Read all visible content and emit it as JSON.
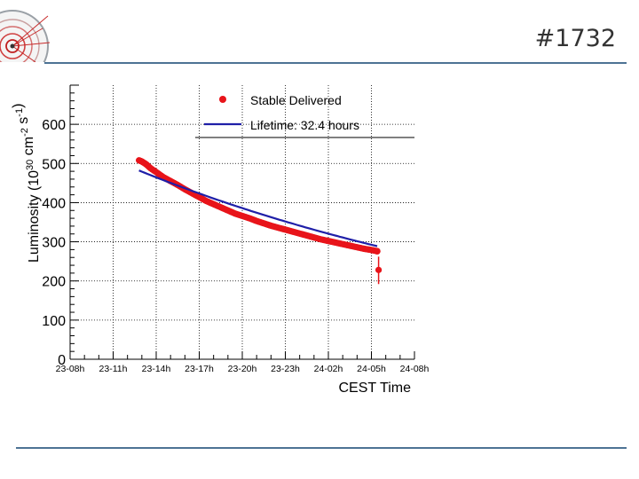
{
  "slide": {
    "title": "#1732",
    "accent_color": "#4d7394"
  },
  "logo": {
    "icon": "collision-event-display-icon"
  },
  "chart_data": {
    "type": "scatter",
    "title": "",
    "xlabel": "CEST Time",
    "ylabel": "Luminosity (10^30 cm^-2 s^-1)",
    "ylabel_parts": {
      "main": "Luminosity (10",
      "exp1": "30",
      "mid": " cm",
      "exp2": "-2",
      "mid2": " s",
      "exp3": "-1",
      "end": ")"
    },
    "x_unit": "hours since 23-08h",
    "xlim": [
      0,
      24
    ],
    "ylim": [
      0,
      700
    ],
    "x_ticks": [
      {
        "x": 0,
        "label": "23-08h"
      },
      {
        "x": 3,
        "label": "23-11h"
      },
      {
        "x": 6,
        "label": "23-14h"
      },
      {
        "x": 9,
        "label": "23-17h"
      },
      {
        "x": 12,
        "label": "23-20h"
      },
      {
        "x": 15,
        "label": "23-23h"
      },
      {
        "x": 18,
        "label": "24-02h"
      },
      {
        "x": 21,
        "label": "24-05h"
      },
      {
        "x": 24,
        "label": "24-08h"
      }
    ],
    "y_ticks": [
      0,
      100,
      200,
      300,
      400,
      500,
      600
    ],
    "grid": true,
    "legend_position": "top-right",
    "series": [
      {
        "name": "Stable Delivered",
        "kind": "markers",
        "color": "#e8141a",
        "points": [
          [
            4.8,
            508
          ],
          [
            5.0,
            505
          ],
          [
            5.3,
            498
          ],
          [
            5.6,
            488
          ],
          [
            6.0,
            478
          ],
          [
            6.5,
            465
          ],
          [
            7.0,
            455
          ],
          [
            7.5,
            445
          ],
          [
            8.0,
            434
          ],
          [
            8.5,
            424
          ],
          [
            9.0,
            414
          ],
          [
            9.5,
            404
          ],
          [
            10.0,
            396
          ],
          [
            10.5,
            388
          ],
          [
            11.0,
            380
          ],
          [
            11.5,
            372
          ],
          [
            12.0,
            366
          ],
          [
            12.5,
            360
          ],
          [
            13.0,
            353
          ],
          [
            13.5,
            347
          ],
          [
            14.0,
            341
          ],
          [
            14.5,
            336
          ],
          [
            15.0,
            331
          ],
          [
            15.5,
            326
          ],
          [
            16.0,
            321
          ],
          [
            16.5,
            316
          ],
          [
            17.0,
            311
          ],
          [
            17.5,
            306
          ],
          [
            18.0,
            302
          ],
          [
            18.5,
            298
          ],
          [
            19.0,
            294
          ],
          [
            19.5,
            290
          ],
          [
            20.0,
            286
          ],
          [
            20.5,
            282
          ],
          [
            21.0,
            279
          ],
          [
            21.4,
            276
          ]
        ],
        "outlier": {
          "x": 21.5,
          "y": 228,
          "err_low": 192,
          "err_high": 262
        }
      },
      {
        "name": "Lifetime: 32.4 hours",
        "kind": "line",
        "color": "#1f1fa8",
        "x_start": 4.8,
        "x_end": 21.4,
        "y_start": 482,
        "lifetime_hours": 32.4
      }
    ]
  }
}
